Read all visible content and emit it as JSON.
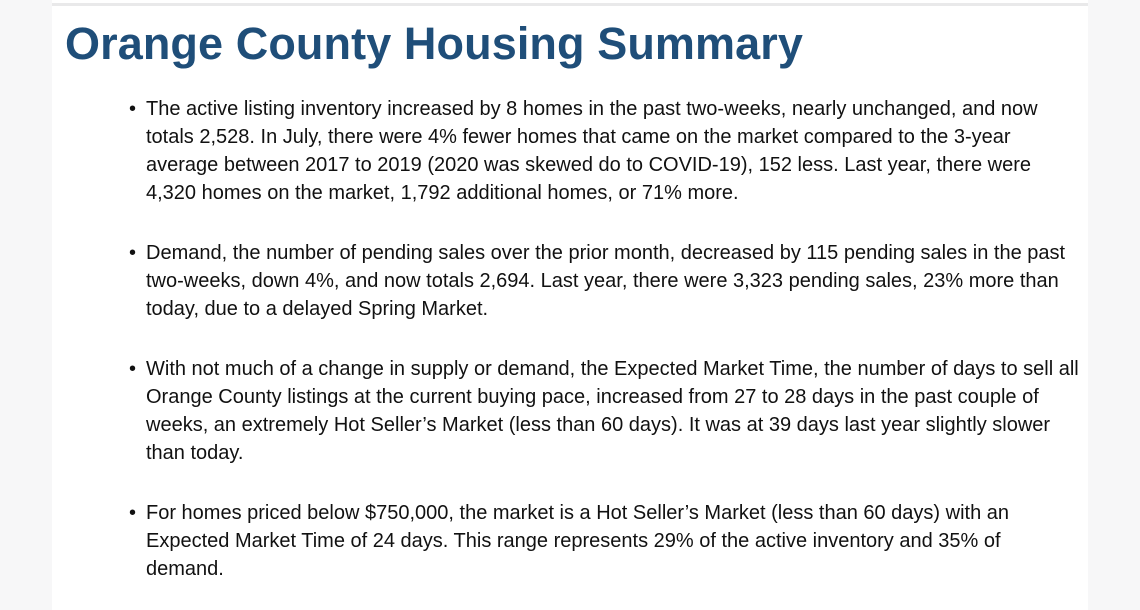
{
  "document": {
    "title": "Orange County Housing Summary",
    "bullet_glyph": "•",
    "bullets": [
      "The active listing inventory increased by 8 homes in the past two-weeks, nearly unchanged, and now totals 2,528. In July, there were 4% fewer homes that came on the market compared to the 3-year average between 2017 to 2019 (2020 was skewed do to COVID-19), 152 less. Last year, there were 4,320 homes on the market, 1,792 additional homes, or 71% more.",
      "Demand, the number of pending sales over the prior month, decreased by 115 pending sales in the past two-weeks, down 4%, and now totals 2,694. Last year, there were 3,323 pending sales, 23% more than today, due to a delayed Spring Market.",
      "With not much of a change in supply or demand, the Expected Market Time, the number of days to sell all Orange County listings at the current buying pace, increased from 27 to 28 days in the past couple of weeks, an extremely Hot Seller’s Market (less than 60 days). It was at 39 days last year slightly slower than today.",
      "For homes priced below $750,000, the market is a Hot Seller’s Market (less than 60 days) with an Expected Market Time of 24 days. This range represents 29% of the active inventory and 35% of demand."
    ]
  },
  "colors": {
    "title": "#1f4e79",
    "body_text": "#111111",
    "page_background": "#ffffff",
    "margin_background": "#f7f7f8"
  }
}
